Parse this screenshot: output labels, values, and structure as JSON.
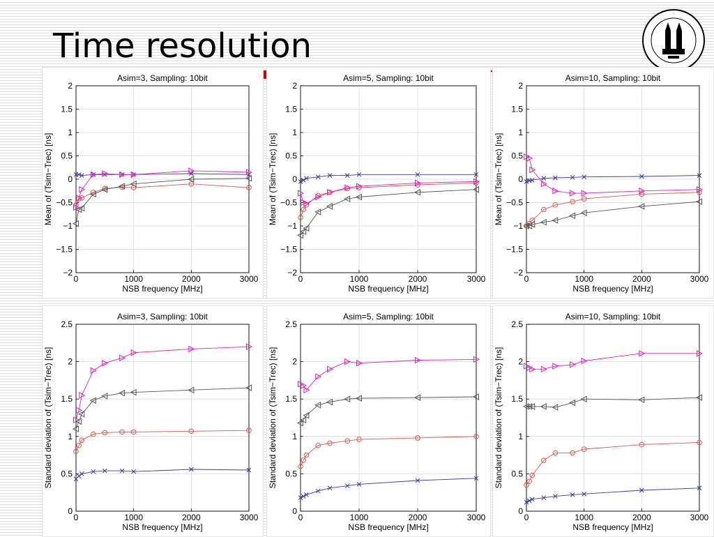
{
  "slide": {
    "title": "Time resolution"
  },
  "colors": {
    "blue": "#3a3aa0",
    "red": "#e0534e",
    "magenta": "#e020c0",
    "black": "#555555"
  },
  "chart_data": [
    {
      "type": "line",
      "title": "Asim=3, Sampling: 10bit",
      "xlabel": "NSB frequency [MHz]",
      "ylabel": "Mean of (Tsim−Trec) [ns]",
      "xlim": [
        0,
        3000
      ],
      "ylim": [
        -2,
        2
      ],
      "xticks": [
        0,
        1000,
        2000,
        3000
      ],
      "yticks": [
        -2,
        -1.5,
        -1,
        -0.5,
        0,
        0.5,
        1,
        1.5,
        2
      ],
      "ytick_labels": [
        "−2",
        "−1.5",
        "−1",
        "−0.5",
        "0",
        "0.5",
        "1",
        "1.5",
        "2"
      ],
      "grid": true,
      "series": [
        {
          "marker": "x",
          "color": "blue",
          "x": [
            0,
            50,
            100,
            300,
            500,
            800,
            1000,
            2000,
            3000
          ],
          "y": [
            0.1,
            0.1,
            0.08,
            0.1,
            0.1,
            0.1,
            0.1,
            0.12,
            0.1
          ]
        },
        {
          "marker": "o",
          "color": "red",
          "x": [
            0,
            50,
            100,
            300,
            500,
            800,
            1000,
            2000,
            3000
          ],
          "y": [
            -0.55,
            -0.42,
            -0.4,
            -0.28,
            -0.2,
            -0.17,
            -0.18,
            -0.1,
            -0.18
          ]
        },
        {
          "marker": "tri-right",
          "color": "magenta",
          "x": [
            0,
            50,
            100,
            300,
            500,
            800,
            1000,
            2000,
            3000
          ],
          "y": [
            -0.6,
            -0.4,
            -0.22,
            0.1,
            0.12,
            0.1,
            0.1,
            0.18,
            0.15
          ]
        },
        {
          "marker": "tri-left",
          "color": "black",
          "x": [
            0,
            50,
            100,
            300,
            500,
            800,
            1000,
            2000,
            3000
          ],
          "y": [
            -0.95,
            -0.65,
            -0.62,
            -0.32,
            -0.22,
            -0.15,
            -0.1,
            0.0,
            0.02
          ]
        }
      ]
    },
    {
      "type": "line",
      "title": "Asim=5, Sampling: 10bit",
      "xlabel": "NSB frequency [MHz]",
      "ylabel": "Mean of (Tsim−Trec) [ns]",
      "xlim": [
        0,
        3000
      ],
      "ylim": [
        -2,
        2
      ],
      "xticks": [
        0,
        1000,
        2000,
        3000
      ],
      "yticks": [
        -2,
        -1.5,
        -1,
        -0.5,
        0,
        0.5,
        1,
        1.5,
        2
      ],
      "ytick_labels": [
        "−2",
        "−1.5",
        "−1",
        "−0.5",
        "0",
        "0.5",
        "1",
        "1.5",
        "2"
      ],
      "grid": true,
      "series": [
        {
          "marker": "x",
          "color": "blue",
          "x": [
            0,
            50,
            100,
            300,
            500,
            800,
            1000,
            2000,
            3000
          ],
          "y": [
            -0.05,
            -0.02,
            0.02,
            0.05,
            0.08,
            0.08,
            0.1,
            0.1,
            0.1
          ]
        },
        {
          "marker": "o",
          "color": "red",
          "x": [
            0,
            50,
            100,
            300,
            500,
            800,
            1000,
            2000,
            3000
          ],
          "y": [
            -0.82,
            -0.65,
            -0.55,
            -0.35,
            -0.28,
            -0.2,
            -0.18,
            -0.12,
            -0.08
          ]
        },
        {
          "marker": "tri-right",
          "color": "magenta",
          "x": [
            0,
            50,
            100,
            300,
            500,
            800,
            1000,
            2000,
            3000
          ],
          "y": [
            -0.3,
            -0.5,
            -0.52,
            -0.38,
            -0.28,
            -0.18,
            -0.15,
            -0.08,
            -0.05
          ]
        },
        {
          "marker": "tri-left",
          "color": "black",
          "x": [
            0,
            50,
            100,
            300,
            500,
            800,
            1000,
            2000,
            3000
          ],
          "y": [
            -1.2,
            -1.12,
            -1.05,
            -0.7,
            -0.58,
            -0.42,
            -0.38,
            -0.28,
            -0.22
          ]
        }
      ]
    },
    {
      "type": "line",
      "title": "Asim=10, Sampling: 10bit",
      "xlabel": "NSB frequency [MHz]",
      "ylabel": "Mean of (Tsim−Trec) [ns]",
      "xlim": [
        0,
        3000
      ],
      "ylim": [
        -2,
        2
      ],
      "xticks": [
        0,
        1000,
        2000,
        3000
      ],
      "yticks": [
        -2,
        -1.5,
        -1,
        -0.5,
        0,
        0.5,
        1,
        1.5,
        2
      ],
      "ytick_labels": [
        "−2",
        "−1.5",
        "−1",
        "−0.5",
        "0",
        "0.5",
        "1",
        "1.5",
        "2"
      ],
      "grid": true,
      "series": [
        {
          "marker": "x",
          "color": "blue",
          "x": [
            0,
            50,
            100,
            300,
            500,
            800,
            1000,
            2000,
            3000
          ],
          "y": [
            -0.05,
            -0.03,
            -0.02,
            0.02,
            0.03,
            0.04,
            0.05,
            0.06,
            0.08
          ]
        },
        {
          "marker": "o",
          "color": "red",
          "x": [
            0,
            50,
            100,
            300,
            500,
            800,
            1000,
            2000,
            3000
          ],
          "y": [
            -1.0,
            -0.95,
            -0.88,
            -0.65,
            -0.55,
            -0.48,
            -0.42,
            -0.32,
            -0.28
          ]
        },
        {
          "marker": "tri-right",
          "color": "magenta",
          "x": [
            0,
            50,
            100,
            300,
            500,
            800,
            1000,
            2000,
            3000
          ],
          "y": [
            0.48,
            0.45,
            0.2,
            -0.1,
            -0.25,
            -0.3,
            -0.3,
            -0.25,
            -0.22
          ]
        },
        {
          "marker": "tri-left",
          "color": "black",
          "x": [
            0,
            50,
            100,
            300,
            500,
            800,
            1000,
            2000,
            3000
          ],
          "y": [
            -1.0,
            -1.0,
            -0.97,
            -0.92,
            -0.88,
            -0.78,
            -0.72,
            -0.58,
            -0.48
          ]
        }
      ]
    },
    {
      "type": "line",
      "title": "Asim=3, Sampling: 10bit",
      "xlabel": "NSB frequency [MHz]",
      "ylabel": "Standard deviation of (Tsim−Trec) [ns]",
      "xlim": [
        0,
        3000
      ],
      "ylim": [
        0,
        2.5
      ],
      "xticks": [
        0,
        1000,
        2000,
        3000
      ],
      "yticks": [
        0,
        0.5,
        1,
        1.5,
        2,
        2.5
      ],
      "ytick_labels": [
        "0",
        "0.5",
        "1",
        "1.5",
        "2",
        "2.5"
      ],
      "grid": true,
      "series": [
        {
          "marker": "x",
          "color": "blue",
          "x": [
            0,
            50,
            100,
            300,
            500,
            800,
            1000,
            2000,
            3000
          ],
          "y": [
            0.43,
            0.47,
            0.5,
            0.53,
            0.54,
            0.54,
            0.53,
            0.56,
            0.55
          ]
        },
        {
          "marker": "o",
          "color": "red",
          "x": [
            0,
            50,
            100,
            300,
            500,
            800,
            1000,
            2000,
            3000
          ],
          "y": [
            0.8,
            0.88,
            0.95,
            1.03,
            1.05,
            1.06,
            1.06,
            1.07,
            1.08
          ]
        },
        {
          "marker": "tri-right",
          "color": "magenta",
          "x": [
            0,
            50,
            100,
            300,
            500,
            800,
            1000,
            2000,
            3000
          ],
          "y": [
            1.22,
            1.35,
            1.55,
            1.88,
            1.98,
            2.05,
            2.12,
            2.17,
            2.2
          ]
        },
        {
          "marker": "tri-left",
          "color": "black",
          "x": [
            0,
            50,
            100,
            300,
            500,
            800,
            1000,
            2000,
            3000
          ],
          "y": [
            1.1,
            1.2,
            1.3,
            1.48,
            1.54,
            1.58,
            1.59,
            1.62,
            1.65
          ]
        }
      ]
    },
    {
      "type": "line",
      "title": "Asim=5, Sampling: 10bit",
      "xlabel": "NSB frequency [MHz]",
      "ylabel": "Standard deviation of (Tsim−Trec) [ns]",
      "xlim": [
        0,
        3000
      ],
      "ylim": [
        0,
        2.5
      ],
      "xticks": [
        0,
        1000,
        2000,
        3000
      ],
      "yticks": [
        0,
        0.5,
        1,
        1.5,
        2,
        2.5
      ],
      "ytick_labels": [
        "0",
        "0.5",
        "1",
        "1.5",
        "2",
        "2.5"
      ],
      "grid": true,
      "series": [
        {
          "marker": "x",
          "color": "blue",
          "x": [
            0,
            50,
            100,
            300,
            500,
            800,
            1000,
            2000,
            3000
          ],
          "y": [
            0.18,
            0.2,
            0.22,
            0.27,
            0.31,
            0.34,
            0.36,
            0.41,
            0.44
          ]
        },
        {
          "marker": "o",
          "color": "red",
          "x": [
            0,
            50,
            100,
            300,
            500,
            800,
            1000,
            2000,
            3000
          ],
          "y": [
            0.6,
            0.68,
            0.75,
            0.88,
            0.91,
            0.94,
            0.96,
            0.98,
            1.0
          ]
        },
        {
          "marker": "tri-right",
          "color": "magenta",
          "x": [
            0,
            50,
            100,
            300,
            500,
            800,
            1000,
            2000,
            3000
          ],
          "y": [
            1.7,
            1.68,
            1.62,
            1.8,
            1.9,
            2.0,
            1.98,
            2.02,
            2.03
          ]
        },
        {
          "marker": "tri-left",
          "color": "black",
          "x": [
            0,
            50,
            100,
            300,
            500,
            800,
            1000,
            2000,
            3000
          ],
          "y": [
            1.18,
            1.22,
            1.28,
            1.42,
            1.46,
            1.5,
            1.51,
            1.52,
            1.53
          ]
        }
      ]
    },
    {
      "type": "line",
      "title": "Asim=10, Sampling: 10bit",
      "xlabel": "NSB frequency [MHz]",
      "ylabel": "Standard deviation of (Tsim−Trec) [ns]",
      "xlim": [
        0,
        3000
      ],
      "ylim": [
        0,
        2.5
      ],
      "xticks": [
        0,
        1000,
        2000,
        3000
      ],
      "yticks": [
        0,
        0.5,
        1,
        1.5,
        2,
        2.5
      ],
      "ytick_labels": [
        "0",
        "0.5",
        "1",
        "1.5",
        "2",
        "2.5"
      ],
      "grid": true,
      "series": [
        {
          "marker": "x",
          "color": "blue",
          "x": [
            0,
            50,
            100,
            300,
            500,
            800,
            1000,
            2000,
            3000
          ],
          "y": [
            0.12,
            0.14,
            0.16,
            0.18,
            0.2,
            0.22,
            0.23,
            0.28,
            0.31
          ]
        },
        {
          "marker": "o",
          "color": "red",
          "x": [
            0,
            50,
            100,
            300,
            500,
            800,
            1000,
            2000,
            3000
          ],
          "y": [
            0.35,
            0.4,
            0.48,
            0.68,
            0.78,
            0.78,
            0.83,
            0.89,
            0.92
          ]
        },
        {
          "marker": "tri-right",
          "color": "magenta",
          "x": [
            0,
            50,
            100,
            300,
            500,
            800,
            1000,
            2000,
            3000
          ],
          "y": [
            1.94,
            1.92,
            1.9,
            1.9,
            1.94,
            1.96,
            2.01,
            2.11,
            2.11
          ]
        },
        {
          "marker": "tri-left",
          "color": "black",
          "x": [
            0,
            50,
            100,
            300,
            500,
            800,
            1000,
            2000,
            3000
          ],
          "y": [
            1.4,
            1.4,
            1.4,
            1.4,
            1.39,
            1.45,
            1.5,
            1.49,
            1.52
          ]
        }
      ]
    }
  ]
}
